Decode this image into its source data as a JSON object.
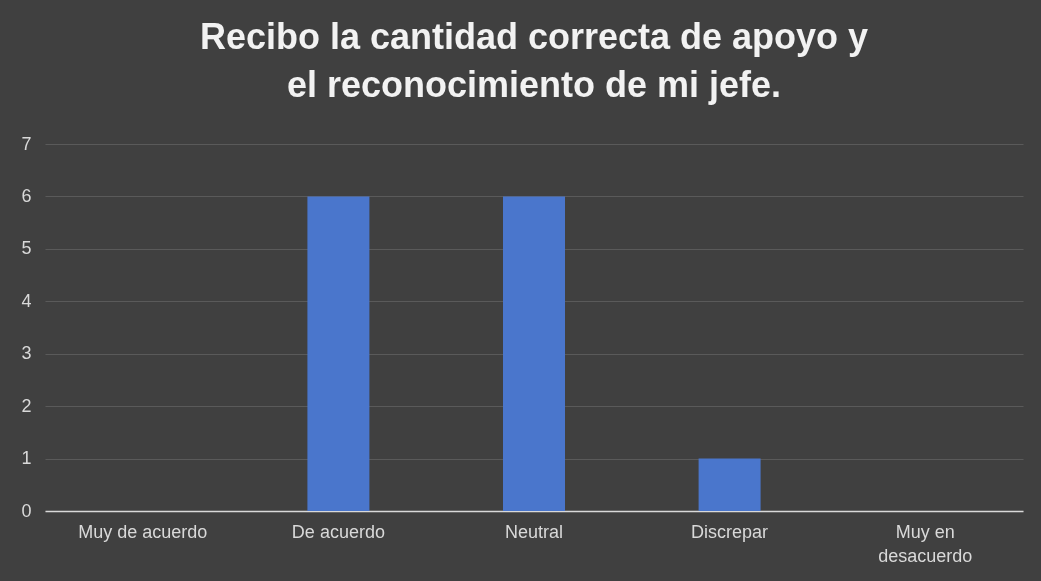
{
  "chart_data": {
    "type": "bar",
    "title": "Recibo la cantidad correcta de apoyo y el reconocimiento de mi jefe.",
    "categories": [
      "Muy de acuerdo",
      "De acuerdo",
      "Neutral",
      "Discrepar",
      "Muy en desacuerdo"
    ],
    "values": [
      0,
      6,
      6,
      1,
      0
    ],
    "color": "#4a76cc",
    "ylim": [
      0,
      7
    ],
    "yticks": [
      0,
      1,
      2,
      3,
      4,
      5,
      6,
      7
    ],
    "grid": "y"
  }
}
